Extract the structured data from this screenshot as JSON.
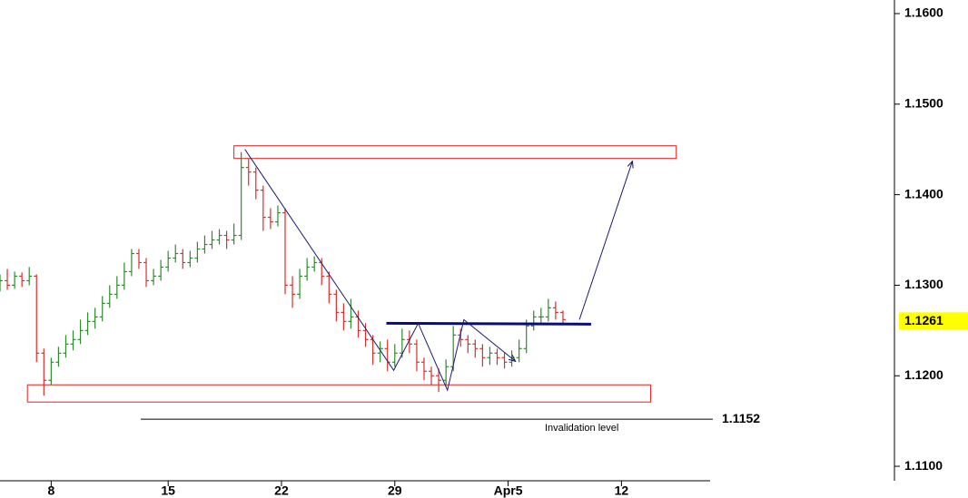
{
  "chart_data": {
    "type": "ohlc",
    "x": [
      0,
      2,
      4,
      6,
      8,
      10,
      12,
      14,
      16,
      18,
      20,
      22,
      24,
      26,
      28,
      30,
      32,
      34,
      36,
      38,
      40,
      42,
      44,
      46,
      48,
      50,
      52,
      54,
      56,
      58,
      60,
      62,
      64,
      66,
      68,
      70,
      72,
      74,
      76,
      78,
      80,
      82,
      84,
      86,
      88,
      90,
      92,
      94,
      96,
      98,
      100,
      102,
      104,
      106,
      108,
      110,
      112,
      114,
      116,
      118,
      120,
      122,
      124,
      126,
      128,
      130,
      132,
      134,
      136,
      138,
      140,
      142,
      144,
      146,
      148,
      150,
      152,
      154
    ],
    "open": [
      1.13,
      1.1305,
      1.13,
      1.131,
      1.1305,
      1.131,
      1.1225,
      1.1195,
      1.1215,
      1.1225,
      1.1235,
      1.124,
      1.125,
      1.126,
      1.1265,
      1.128,
      1.129,
      1.13,
      1.1315,
      1.1335,
      1.1325,
      1.1305,
      1.131,
      1.132,
      1.133,
      1.1335,
      1.1325,
      1.133,
      1.134,
      1.1345,
      1.135,
      1.1355,
      1.135,
      1.1355,
      1.143,
      1.1425,
      1.1405,
      1.1375,
      1.137,
      1.138,
      1.13,
      1.129,
      1.131,
      1.132,
      1.1325,
      1.131,
      1.129,
      1.127,
      1.126,
      1.1265,
      1.125,
      1.124,
      1.1225,
      1.123,
      1.1215,
      1.1225,
      1.124,
      1.1235,
      1.1215,
      1.1205,
      1.12,
      1.1195,
      1.121,
      1.1245,
      1.124,
      1.1235,
      1.123,
      1.122,
      1.1225,
      1.122,
      1.1215,
      1.122,
      1.123,
      1.1255,
      1.1265,
      1.1265,
      1.1275,
      1.127
    ],
    "high": [
      1.1312,
      1.1318,
      1.1315,
      1.1314,
      1.132,
      1.1312,
      1.123,
      1.122,
      1.1232,
      1.1245,
      1.125,
      1.1262,
      1.127,
      1.1275,
      1.1288,
      1.13,
      1.131,
      1.1325,
      1.134,
      1.134,
      1.133,
      1.1318,
      1.1328,
      1.1338,
      1.1345,
      1.134,
      1.1338,
      1.1348,
      1.1355,
      1.136,
      1.1362,
      1.136,
      1.1368,
      1.1447,
      1.144,
      1.143,
      1.141,
      1.1385,
      1.1388,
      1.1385,
      1.131,
      1.1318,
      1.133,
      1.1332,
      1.133,
      1.1315,
      1.1295,
      1.128,
      1.1285,
      1.1272,
      1.1258,
      1.1245,
      1.1238,
      1.124,
      1.1235,
      1.1252,
      1.125,
      1.124,
      1.122,
      1.121,
      1.1208,
      1.1218,
      1.1255,
      1.1252,
      1.1245,
      1.124,
      1.1235,
      1.1232,
      1.123,
      1.1225,
      1.1228,
      1.124,
      1.1262,
      1.1272,
      1.1275,
      1.1285,
      1.1282,
      1.1272
    ],
    "low": [
      1.1293,
      1.1295,
      1.1296,
      1.1298,
      1.13,
      1.1215,
      1.1178,
      1.119,
      1.121,
      1.122,
      1.1228,
      1.1235,
      1.1245,
      1.1252,
      1.126,
      1.1275,
      1.1285,
      1.1295,
      1.131,
      1.1318,
      1.1298,
      1.13,
      1.1305,
      1.1315,
      1.1325,
      1.1318,
      1.132,
      1.1325,
      1.1335,
      1.134,
      1.1345,
      1.134,
      1.1345,
      1.135,
      1.141,
      1.1395,
      1.136,
      1.1362,
      1.1365,
      1.129,
      1.1275,
      1.1285,
      1.1305,
      1.1315,
      1.13,
      1.128,
      1.126,
      1.125,
      1.1252,
      1.1242,
      1.1232,
      1.1212,
      1.1215,
      1.1205,
      1.121,
      1.122,
      1.1225,
      1.1205,
      1.1195,
      1.119,
      1.1182,
      1.1188,
      1.1205,
      1.1232,
      1.1225,
      1.122,
      1.121,
      1.1212,
      1.1212,
      1.1208,
      1.121,
      1.1215,
      1.1225,
      1.125,
      1.1258,
      1.126,
      1.1262,
      1.1258
    ],
    "close": [
      1.1305,
      1.13,
      1.131,
      1.1305,
      1.131,
      1.1225,
      1.1195,
      1.1215,
      1.1225,
      1.1235,
      1.124,
      1.125,
      1.126,
      1.1265,
      1.128,
      1.129,
      1.13,
      1.1315,
      1.1335,
      1.1325,
      1.1305,
      1.131,
      1.132,
      1.133,
      1.1335,
      1.1325,
      1.133,
      1.134,
      1.1345,
      1.135,
      1.1355,
      1.135,
      1.1355,
      1.143,
      1.1425,
      1.1405,
      1.1375,
      1.137,
      1.138,
      1.13,
      1.129,
      1.131,
      1.132,
      1.1325,
      1.131,
      1.129,
      1.127,
      1.126,
      1.1265,
      1.125,
      1.124,
      1.1225,
      1.123,
      1.1215,
      1.1225,
      1.124,
      1.1235,
      1.1215,
      1.1205,
      1.12,
      1.1195,
      1.121,
      1.1245,
      1.124,
      1.1235,
      1.123,
      1.122,
      1.1225,
      1.122,
      1.1215,
      1.122,
      1.123,
      1.1255,
      1.1265,
      1.1265,
      1.1275,
      1.127,
      1.1262
    ],
    "up_color": "#2e8b2e",
    "down_color": "#d23232",
    "xlim": [
      0,
      195
    ],
    "xticks": [
      {
        "value": 14,
        "label": "8"
      },
      {
        "value": 46,
        "label": "15"
      },
      {
        "value": 77,
        "label": "22"
      },
      {
        "value": 108,
        "label": "29"
      },
      {
        "value": 139,
        "label": "Apr5"
      },
      {
        "value": 170,
        "label": "12"
      }
    ],
    "ylim": [
      1.1065,
      1.1615
    ],
    "yticks": [
      {
        "value": 1.11,
        "label": "1.1100"
      },
      {
        "value": 1.12,
        "label": "1.1200"
      },
      {
        "value": 1.13,
        "label": "1.1300"
      },
      {
        "value": 1.14,
        "label": "1.1400"
      },
      {
        "value": 1.15,
        "label": "1.1500"
      },
      {
        "value": 1.16,
        "label": "1.1600"
      }
    ],
    "last_price": {
      "value": 1.1261,
      "label": "1.1261"
    },
    "zones": [
      {
        "x": [
          64,
          185
        ],
        "y": [
          1.144,
          1.1454
        ]
      },
      {
        "x": [
          7.5,
          178
        ],
        "y": [
          1.1171,
          1.119
        ]
      }
    ],
    "paths": [
      {
        "x": [
          67,
          107.7,
          114.4,
          122.4,
          126.9,
          141
        ],
        "y": [
          1.145,
          1.1206,
          1.1258,
          1.1184,
          1.1262,
          1.1216
        ],
        "color": "#1a1a6e"
      },
      {
        "x": [
          158.5,
          173
        ],
        "y": [
          1.1262,
          1.1437
        ],
        "color": "#1a1a6e"
      }
    ],
    "neckline": {
      "x": [
        105.7,
        161.7
      ],
      "y": [
        1.1258,
        1.1257
      ],
      "color": "#0a0a80"
    },
    "invalidation": {
      "value": 1.1152,
      "label": "1.1152",
      "text": "Invalidation level",
      "x": [
        38.5,
        195
      ]
    }
  }
}
